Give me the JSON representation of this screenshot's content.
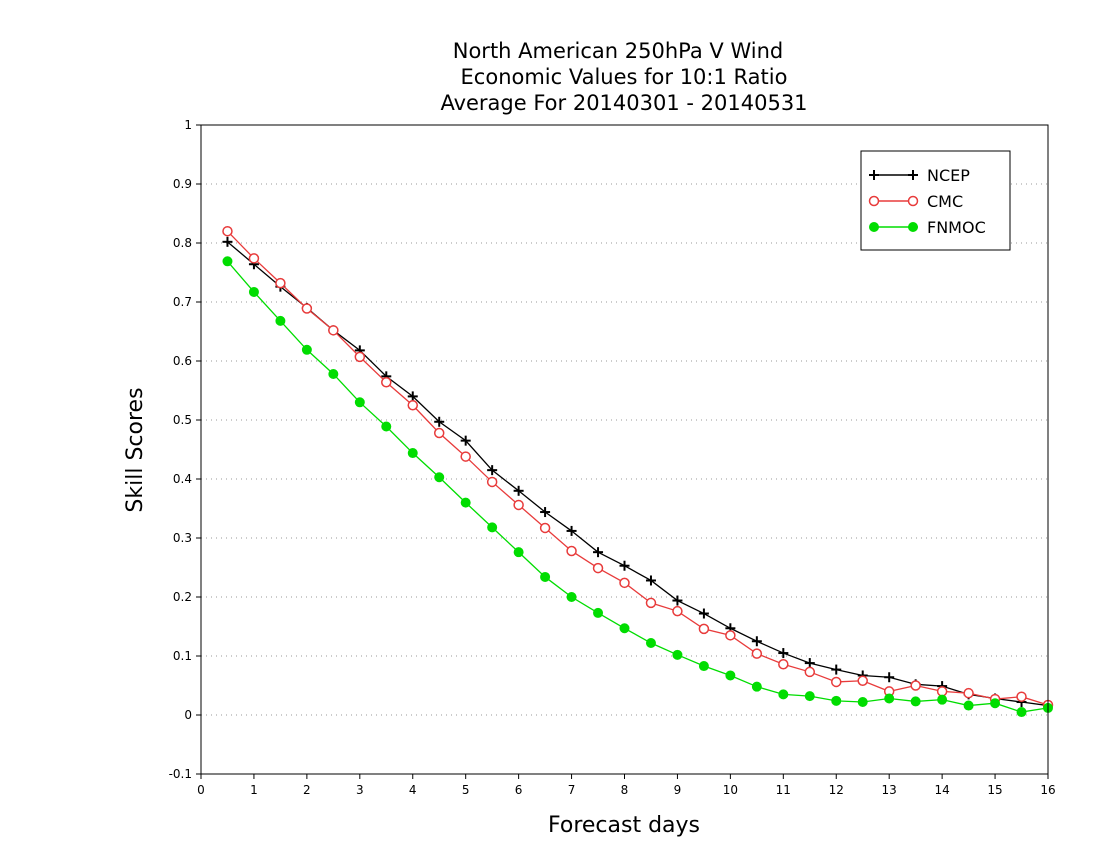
{
  "chart_data": {
    "type": "line",
    "title": [
      "North American 250hPa V Wind",
      "Economic Values for 10:1 Ratio",
      "Average For 20140301 - 20140531"
    ],
    "xlabel": "Forecast days",
    "ylabel": "Skill Scores",
    "xlim": [
      0,
      16
    ],
    "ylim": [
      -0.1,
      1
    ],
    "x_ticks": [
      0,
      1,
      2,
      3,
      4,
      5,
      6,
      7,
      8,
      9,
      10,
      11,
      12,
      13,
      14,
      15,
      16
    ],
    "y_ticks": [
      -0.1,
      0,
      0.1,
      0.2,
      0.3,
      0.4,
      0.5,
      0.6,
      0.7,
      0.8,
      0.9,
      1
    ],
    "y_tick_labels": [
      "-0.1",
      "0",
      "0.1",
      "0.2",
      "0.3",
      "0.4",
      "0.5",
      "0.6",
      "0.7",
      "0.8",
      "0.9",
      "1"
    ],
    "grid": "horizontal-dotted",
    "legend_position": "top-right",
    "x": [
      0.5,
      1,
      1.5,
      2,
      2.5,
      3,
      3.5,
      4,
      4.5,
      5,
      5.5,
      6,
      6.5,
      7,
      7.5,
      8,
      8.5,
      9,
      9.5,
      10,
      10.5,
      11,
      11.5,
      12,
      12.5,
      13,
      13.5,
      14,
      14.5,
      15,
      15.5,
      16
    ],
    "series": [
      {
        "name": "NCEP",
        "color": "#000000",
        "marker": "plus",
        "values": [
          0.802,
          0.764,
          0.726,
          0.69,
          0.652,
          0.618,
          0.574,
          0.54,
          0.497,
          0.465,
          0.415,
          0.38,
          0.344,
          0.312,
          0.276,
          0.253,
          0.228,
          0.194,
          0.172,
          0.147,
          0.125,
          0.105,
          0.088,
          0.077,
          0.067,
          0.064,
          0.052,
          0.049,
          0.035,
          0.028,
          0.022,
          0.016
        ]
      },
      {
        "name": "CMC",
        "color": "#e83b3b",
        "marker": "open-circle",
        "values": [
          0.82,
          0.774,
          0.732,
          0.689,
          0.652,
          0.607,
          0.564,
          0.525,
          0.478,
          0.438,
          0.395,
          0.356,
          0.317,
          0.278,
          0.249,
          0.224,
          0.19,
          0.176,
          0.146,
          0.135,
          0.104,
          0.086,
          0.073,
          0.056,
          0.058,
          0.04,
          0.05,
          0.04,
          0.037,
          0.027,
          0.031,
          0.017
        ]
      },
      {
        "name": "FNMOC",
        "color": "#00dd00",
        "marker": "filled-circle",
        "values": [
          0.769,
          0.717,
          0.668,
          0.619,
          0.578,
          0.53,
          0.489,
          0.444,
          0.403,
          0.36,
          0.318,
          0.276,
          0.234,
          0.2,
          0.173,
          0.147,
          0.122,
          0.102,
          0.083,
          0.067,
          0.048,
          0.035,
          0.032,
          0.024,
          0.022,
          0.028,
          0.023,
          0.026,
          0.016,
          0.02,
          0.005,
          0.012
        ]
      }
    ]
  }
}
